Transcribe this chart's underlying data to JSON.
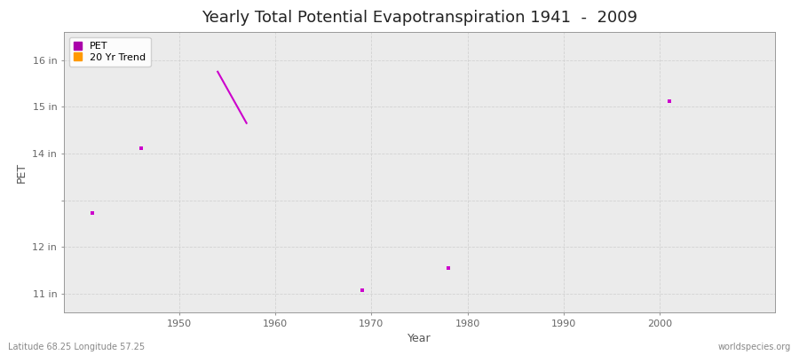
{
  "title": "Yearly Total Potential Evapotranspiration 1941  -  2009",
  "xlabel": "Year",
  "ylabel": "PET",
  "background_color": "#ffffff",
  "plot_bg_color": "#ebebeb",
  "ytick_labels": [
    "11 in",
    "12 in",
    "",
    "14 in",
    "15 in",
    "16 in"
  ],
  "ytick_values": [
    11,
    12,
    13,
    14,
    15,
    16
  ],
  "ylim": [
    10.6,
    16.6
  ],
  "xlim": [
    1938,
    2012
  ],
  "xtick_values": [
    1950,
    1960,
    1970,
    1980,
    1990,
    2000
  ],
  "pet_points": [
    [
      1941,
      12.72
    ],
    [
      1946,
      14.12
    ],
    [
      1969,
      11.07
    ],
    [
      1978,
      11.55
    ],
    [
      2001,
      15.12
    ]
  ],
  "trend_line": [
    [
      1954,
      15.75
    ],
    [
      1957,
      14.65
    ]
  ],
  "pet_color": "#cc00cc",
  "trend_color": "#cc00cc",
  "legend_pet_color": "#aa00aa",
  "legend_trend_color": "#ff9900",
  "grid_color": "#d0d0d0",
  "title_fontsize": 13,
  "axis_label_fontsize": 9,
  "tick_fontsize": 8,
  "footer_left": "Latitude 68.25 Longitude 57.25",
  "footer_right": "worldspecies.org"
}
